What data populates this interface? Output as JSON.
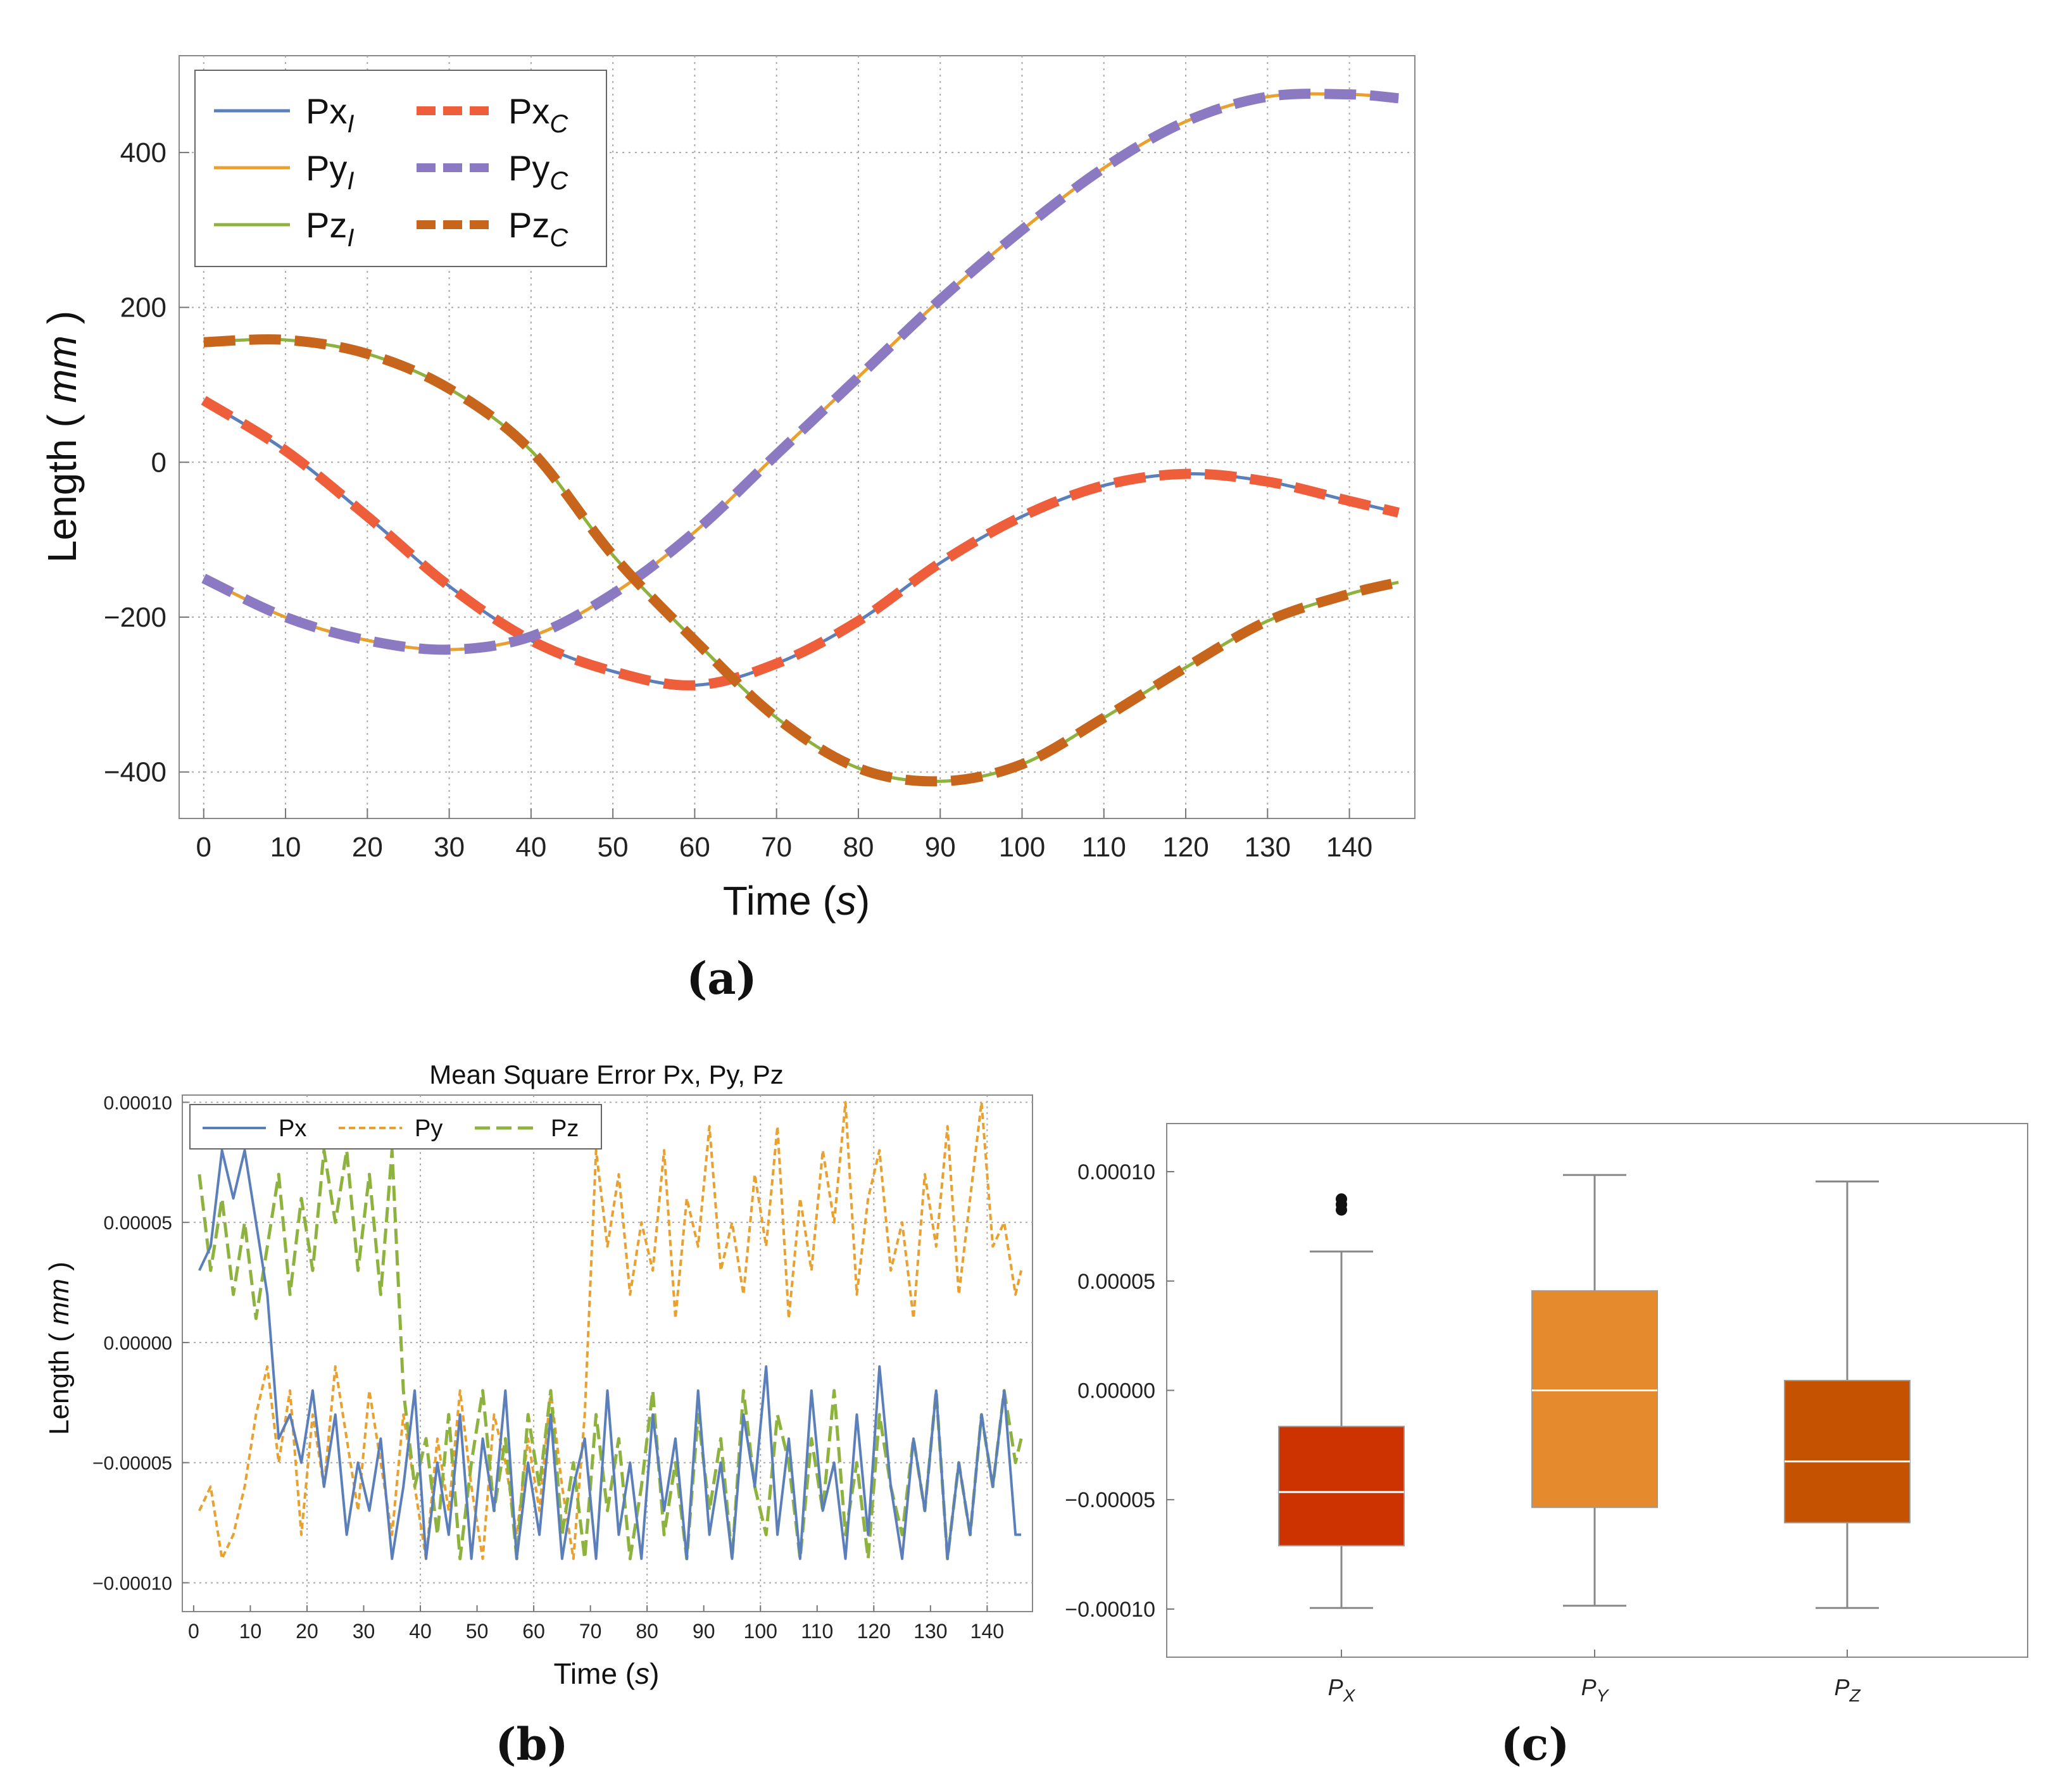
{
  "panels": {
    "a": "(a)",
    "b": "(b)",
    "c": "(c)"
  },
  "chart_data": [
    {
      "id": "a",
      "type": "line",
      "title": "",
      "xlabel": "Time",
      "xlabel_unit": "s",
      "ylabel": "Length",
      "ylabel_unit": "mm",
      "xlim": [
        -3,
        148
      ],
      "ylim": [
        -460,
        525
      ],
      "xticks": [
        0,
        10,
        20,
        30,
        40,
        50,
        60,
        70,
        80,
        90,
        100,
        110,
        120,
        130,
        140
      ],
      "yticks": [
        -400,
        -200,
        0,
        200,
        400
      ],
      "ytick_labels": [
        "−400",
        "−200",
        "0",
        "200",
        "400"
      ],
      "grid": true,
      "legend_position": "top-left",
      "legend": [
        {
          "base": "Px",
          "sub": "I",
          "color": "#5b7fbb",
          "style": "solid"
        },
        {
          "base": "Px",
          "sub": "C",
          "color": "#ef5e3a",
          "style": "dashed"
        },
        {
          "base": "Py",
          "sub": "I",
          "color": "#e8a02f",
          "style": "solid"
        },
        {
          "base": "Py",
          "sub": "C",
          "color": "#8b7ac1",
          "style": "dashed"
        },
        {
          "base": "Pz",
          "sub": "I",
          "color": "#8db23e",
          "style": "solid"
        },
        {
          "base": "Pz",
          "sub": "C",
          "color": "#c8651c",
          "style": "dashed"
        }
      ],
      "x": [
        0,
        10,
        20,
        30,
        40,
        50,
        60,
        70,
        80,
        90,
        100,
        110,
        120,
        130,
        140,
        146
      ],
      "series": [
        {
          "name": "Px_I",
          "values": [
            80,
            15,
            -70,
            -160,
            -230,
            -270,
            -288,
            -260,
            -205,
            -130,
            -70,
            -30,
            -15,
            -25,
            -50,
            -65
          ]
        },
        {
          "name": "Px_C",
          "values": [
            80,
            15,
            -70,
            -160,
            -230,
            -270,
            -288,
            -260,
            -205,
            -130,
            -70,
            -30,
            -15,
            -25,
            -50,
            -65
          ]
        },
        {
          "name": "Py_I",
          "values": [
            -150,
            -200,
            -230,
            -242,
            -225,
            -170,
            -90,
            10,
            110,
            210,
            300,
            380,
            440,
            472,
            475,
            470
          ]
        },
        {
          "name": "Py_C",
          "values": [
            -150,
            -200,
            -230,
            -242,
            -225,
            -170,
            -90,
            10,
            110,
            210,
            300,
            380,
            440,
            472,
            475,
            470
          ]
        },
        {
          "name": "Pz_I",
          "values": [
            155,
            158,
            140,
            95,
            15,
            -120,
            -230,
            -330,
            -395,
            -412,
            -390,
            -330,
            -265,
            -205,
            -170,
            -155
          ]
        },
        {
          "name": "Pz_C",
          "values": [
            155,
            158,
            140,
            95,
            15,
            -120,
            -230,
            -330,
            -395,
            -412,
            -390,
            -330,
            -265,
            -205,
            -170,
            -155
          ]
        }
      ]
    },
    {
      "id": "b",
      "type": "line",
      "title": "Mean Square Error Px, Py, Pz",
      "xlabel": "Time",
      "xlabel_unit": "s",
      "ylabel": "Length",
      "ylabel_unit": "mm",
      "xlim": [
        -2,
        148
      ],
      "ylim": [
        -0.000112,
        0.000103
      ],
      "xticks": [
        0,
        10,
        20,
        30,
        40,
        50,
        60,
        70,
        80,
        90,
        100,
        110,
        120,
        130,
        140
      ],
      "yticks": [
        -0.0001,
        -5e-05,
        0,
        5e-05,
        0.0001
      ],
      "ytick_labels": [
        "−0.00010",
        "−0.00005",
        "0.00000",
        "0.00005",
        "0.00010"
      ],
      "grid": true,
      "legend_position": "top-left",
      "legend": [
        {
          "name": "Px",
          "color": "#5b7fbb",
          "style": "solid"
        },
        {
          "name": "Py",
          "color": "#e8a02f",
          "style": "dashed"
        },
        {
          "name": "Pz",
          "color": "#8db23e",
          "style": "dashed"
        }
      ],
      "x": [
        1,
        3,
        5,
        7,
        9,
        11,
        13,
        15,
        17,
        19,
        21,
        23,
        25,
        27,
        29,
        31,
        33,
        35,
        37,
        39,
        41,
        43,
        45,
        47,
        49,
        51,
        53,
        55,
        57,
        59,
        61,
        63,
        65,
        67,
        69,
        71,
        73,
        75,
        77,
        79,
        81,
        83,
        85,
        87,
        89,
        91,
        93,
        95,
        97,
        99,
        101,
        103,
        105,
        107,
        109,
        111,
        113,
        115,
        117,
        119,
        121,
        123,
        125,
        127,
        129,
        131,
        133,
        135,
        137,
        139,
        141,
        143,
        145,
        146
      ],
      "series": [
        {
          "name": "Px",
          "values": [
            3e-05,
            4e-05,
            8e-05,
            6e-05,
            8e-05,
            5e-05,
            2e-05,
            -4e-05,
            -3e-05,
            -5e-05,
            -2e-05,
            -6e-05,
            -3e-05,
            -8e-05,
            -5e-05,
            -7e-05,
            -4e-05,
            -9e-05,
            -6e-05,
            -2e-05,
            -9e-05,
            -5e-05,
            -8e-05,
            -3e-05,
            -9e-05,
            -4e-05,
            -7e-05,
            -2e-05,
            -9e-05,
            -5e-05,
            -8e-05,
            -3e-05,
            -9e-05,
            -6e-05,
            -4e-05,
            -9e-05,
            -2e-05,
            -8e-05,
            -5e-05,
            -9e-05,
            -3e-05,
            -7e-05,
            -4e-05,
            -9e-05,
            -2e-05,
            -8e-05,
            -5e-05,
            -9e-05,
            -3e-05,
            -6e-05,
            -1e-05,
            -8e-05,
            -4e-05,
            -9e-05,
            -2e-05,
            -7e-05,
            -5e-05,
            -9e-05,
            -3e-05,
            -8e-05,
            -1e-05,
            -6e-05,
            -9e-05,
            -4e-05,
            -7e-05,
            -2e-05,
            -9e-05,
            -5e-05,
            -8e-05,
            -3e-05,
            -6e-05,
            -2e-05,
            -8e-05,
            -8e-05
          ]
        },
        {
          "name": "Py",
          "values": [
            -7e-05,
            -6e-05,
            -9e-05,
            -8e-05,
            -6e-05,
            -3e-05,
            -1e-05,
            -5e-05,
            -2e-05,
            -8e-05,
            -3e-05,
            -6e-05,
            -1e-05,
            -4e-05,
            -7e-05,
            -2e-05,
            -5e-05,
            -8e-05,
            -3e-05,
            -6e-05,
            -9e-05,
            -4e-05,
            -7e-05,
            -2e-05,
            -6e-05,
            -9e-05,
            -3e-05,
            -5e-05,
            -8e-05,
            -4e-05,
            -7e-05,
            -2e-05,
            -6e-05,
            -9e-05,
            -3e-05,
            8e-05,
            4e-05,
            7e-05,
            2e-05,
            5e-05,
            3e-05,
            8e-05,
            1e-05,
            6e-05,
            4e-05,
            9e-05,
            3e-05,
            5e-05,
            2e-05,
            7e-05,
            4e-05,
            9e-05,
            1e-05,
            6e-05,
            3e-05,
            8e-05,
            5e-05,
            0.0001,
            2e-05,
            6e-05,
            8e-05,
            3e-05,
            5e-05,
            1e-05,
            7e-05,
            4e-05,
            9e-05,
            2e-05,
            6e-05,
            0.0001,
            4e-05,
            5e-05,
            2e-05,
            3e-05
          ]
        },
        {
          "name": "Pz",
          "values": [
            7e-05,
            3e-05,
            6e-05,
            2e-05,
            5e-05,
            1e-05,
            4e-05,
            7e-05,
            2e-05,
            6e-05,
            3e-05,
            8e-05,
            5e-05,
            8e-05,
            3e-05,
            7e-05,
            2e-05,
            8e-05,
            -2e-05,
            -6e-05,
            -4e-05,
            -8e-05,
            -3e-05,
            -9e-05,
            -5e-05,
            -2e-05,
            -7e-05,
            -4e-05,
            -9e-05,
            -3e-05,
            -6e-05,
            -2e-05,
            -8e-05,
            -5e-05,
            -9e-05,
            -3e-05,
            -7e-05,
            -4e-05,
            -9e-05,
            -6e-05,
            -2e-05,
            -8e-05,
            -5e-05,
            -9e-05,
            -3e-05,
            -7e-05,
            -4e-05,
            -9e-05,
            -2e-05,
            -6e-05,
            -8e-05,
            -3e-05,
            -5e-05,
            -9e-05,
            -4e-05,
            -7e-05,
            -2e-05,
            -8e-05,
            -5e-05,
            -9e-05,
            -3e-05,
            -6e-05,
            -8e-05,
            -4e-05,
            -7e-05,
            -2e-05,
            -9e-05,
            -5e-05,
            -8e-05,
            -3e-05,
            -6e-05,
            -2e-05,
            -5e-05,
            -4e-05
          ]
        }
      ]
    },
    {
      "id": "c",
      "type": "box",
      "title": "",
      "xlabel": "",
      "ylabel": "",
      "ylim": [
        -0.000122,
        0.000122
      ],
      "yticks": [
        -0.0001,
        -5e-05,
        0,
        5e-05,
        0.0001
      ],
      "ytick_labels": [
        "−0.00010",
        "−0.00005",
        "0.00000",
        "0.00005",
        "0.00010"
      ],
      "grid": false,
      "categories": [
        {
          "base": "P",
          "sub": "X"
        },
        {
          "base": "P",
          "sub": "Y"
        },
        {
          "base": "P",
          "sub": "Z"
        }
      ],
      "boxes": [
        {
          "name": "P_X",
          "color": "#cc3300",
          "whisker_low": -9.95e-05,
          "q1": -7.1e-05,
          "median": -4.65e-05,
          "q3": -1.65e-05,
          "whisker_high": 6.35e-05,
          "outliers": [
            8.25e-05,
            8.5e-05,
            8.75e-05
          ]
        },
        {
          "name": "P_Y",
          "color": "#e68a2e",
          "whisker_low": -9.85e-05,
          "q1": -5.35e-05,
          "median": 0.0,
          "q3": 4.55e-05,
          "whisker_high": 9.85e-05,
          "outliers": []
        },
        {
          "name": "P_Z",
          "color": "#c55200",
          "whisker_low": -9.95e-05,
          "q1": -6.05e-05,
          "median": -3.25e-05,
          "q3": 4.5e-06,
          "whisker_high": 9.55e-05,
          "outliers": []
        }
      ]
    }
  ]
}
